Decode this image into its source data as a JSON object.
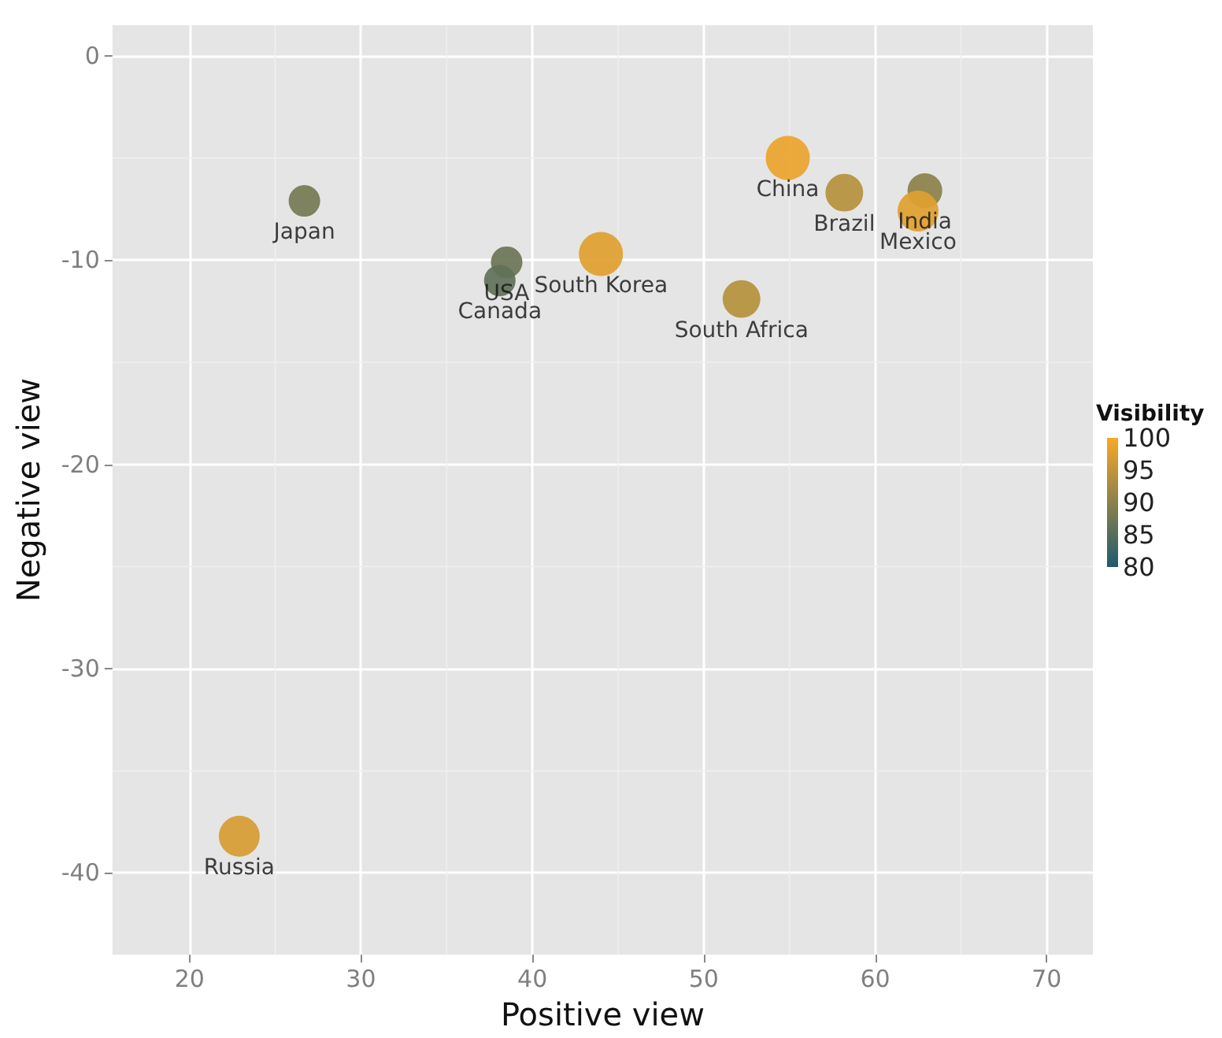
{
  "chart_data": {
    "type": "bubble",
    "sizes": [
      0.51,
      0.51,
      0.51,
      1,
      1,
      0.73,
      0.62,
      0.86,
      0.73,
      0.86
    ],
    "xlabel": "Positive view",
    "ylabel": "Negative view",
    "clabel": "Visibility",
    "x": [
      26.7,
      38.5,
      38.1,
      44.0,
      54.9,
      58.2,
      62.9,
      62.5,
      52.2,
      22.9
    ],
    "values": [
      -7.1,
      -10.1,
      -11.0,
      -9.7,
      -5.0,
      -6.7,
      -6.6,
      -7.6,
      -11.9,
      -38.2
    ],
    "cvalues": [
      88,
      87,
      86,
      98,
      99,
      94,
      90,
      98,
      94,
      97
    ],
    "clim": [
      80,
      100
    ],
    "cticks": [
      80,
      85,
      90,
      95,
      100
    ],
    "annotations": [
      {
        "text": "Japan",
        "x": 26.7,
        "y": -7.1
      },
      {
        "text": "USA",
        "x": 38.5,
        "y": -10.1
      },
      {
        "text": "Canada",
        "x": 38.1,
        "y": -11.0
      },
      {
        "text": "South Korea",
        "x": 44.0,
        "y": -9.7
      },
      {
        "text": "China",
        "x": 54.9,
        "y": -5.0
      },
      {
        "text": "Brazil",
        "x": 58.2,
        "y": -6.7
      },
      {
        "text": "India",
        "x": 62.9,
        "y": -6.6
      },
      {
        "text": "Mexico",
        "x": 62.5,
        "y": -7.6
      },
      {
        "text": "South Africa",
        "x": 52.2,
        "y": -11.9
      },
      {
        "text": "Russia",
        "x": 22.9,
        "y": -38.2
      }
    ],
    "xlim": [
      15.5,
      72.7
    ],
    "ylim": [
      -44,
      1.5
    ],
    "xticks": [
      20,
      30,
      40,
      50,
      60,
      70
    ],
    "yticks": [
      0,
      -10,
      -20,
      -30,
      -40
    ],
    "grid": true,
    "marker": "circle"
  }
}
